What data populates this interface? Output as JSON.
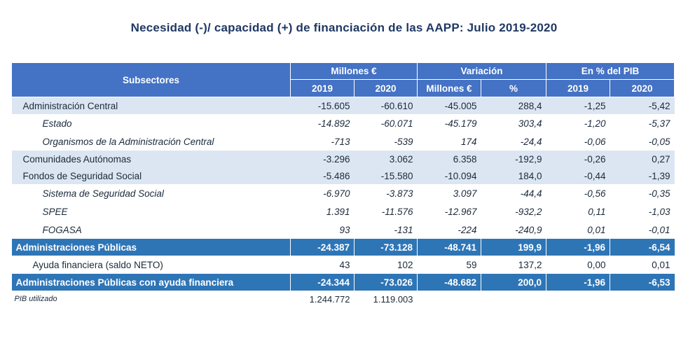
{
  "title": "Necesidad (-)/ capacidad (+) de financiación de las AAPP:  Julio 2019-2020",
  "header": {
    "subsectores": "Subsectores",
    "millones": "Millones €",
    "variacion": "Variación",
    "pib": "En % del PIB",
    "sub": [
      "2019",
      "2020",
      "Millones €",
      "%",
      "2019",
      "2020"
    ]
  },
  "rows": [
    {
      "label": "Administración Central",
      "values": [
        "-15.605",
        "-60.610",
        "-45.005",
        "288,4",
        "-1,25",
        "-5,42"
      ]
    },
    {
      "label": "Estado",
      "values": [
        "-14.892",
        "-60.071",
        "-45.179",
        "303,4",
        "-1,20",
        "-5,37"
      ]
    },
    {
      "label": "Organismos de la Administración Central",
      "values": [
        "-713",
        "-539",
        "174",
        "-24,4",
        "-0,06",
        "-0,05"
      ]
    },
    {
      "label": "Comunidades Autónomas",
      "values": [
        "-3.296",
        "3.062",
        "6.358",
        "-192,9",
        "-0,26",
        "0,27"
      ]
    },
    {
      "label": "Fondos de Seguridad Social",
      "values": [
        "-5.486",
        "-15.580",
        "-10.094",
        "184,0",
        "-0,44",
        "-1,39"
      ]
    },
    {
      "label": "Sistema de Seguridad Social",
      "values": [
        "-6.970",
        "-3.873",
        "3.097",
        "-44,4",
        "-0,56",
        "-0,35"
      ]
    },
    {
      "label": "SPEE",
      "values": [
        "1.391",
        "-11.576",
        "-12.967",
        "-932,2",
        "0,11",
        "-1,03"
      ]
    },
    {
      "label": "FOGASA",
      "values": [
        "93",
        "-131",
        "-224",
        "-240,9",
        "0,01",
        "-0,01"
      ]
    },
    {
      "label": "Administraciones Públicas",
      "values": [
        "-24.387",
        "-73.128",
        "-48.741",
        "199,9",
        "-1,96",
        "-6,54"
      ]
    },
    {
      "label": "Ayuda financiera (saldo NETO)",
      "values": [
        "43",
        "102",
        "59",
        "137,2",
        "0,00",
        "0,01"
      ]
    },
    {
      "label": "Administraciones Públicas con ayuda financiera",
      "values": [
        "-24.344",
        "-73.026",
        "-48.682",
        "200,0",
        "-1,96",
        "-6,53"
      ]
    }
  ],
  "pib_utilizado": {
    "label": "PIB utilizado",
    "values": [
      "1.244.772",
      "1.119.003"
    ]
  }
}
